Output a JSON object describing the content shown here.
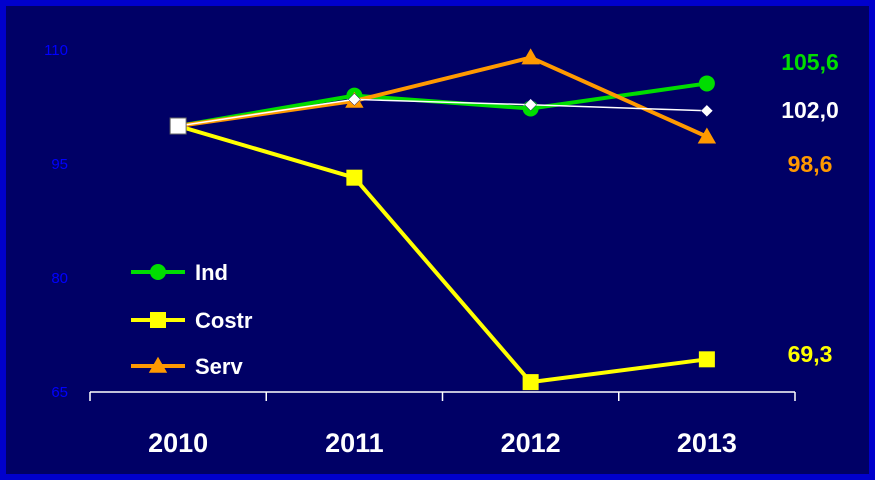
{
  "chart_data": {
    "type": "line",
    "categories": [
      "2010",
      "2011",
      "2012",
      "2013"
    ],
    "ylim": [
      65,
      110
    ],
    "yticks": [
      65,
      80,
      95,
      110
    ],
    "grid": false,
    "legend_position": "bottom-left",
    "series": [
      {
        "name": "Ind",
        "values": [
          100,
          104.0,
          102.3,
          105.6
        ],
        "color": "#00dd00",
        "marker": "circle",
        "end_label": "105,6",
        "show_label": true
      },
      {
        "name": "Costr",
        "values": [
          100,
          93.2,
          66.3,
          69.3
        ],
        "color": "#ffff00",
        "marker": "square",
        "end_label": "69,3",
        "show_label": true
      },
      {
        "name": "Serv",
        "values": [
          100,
          103.3,
          109.0,
          98.6
        ],
        "color": "#ff9900",
        "marker": "triangle",
        "end_label": "98,6",
        "show_label": true
      },
      {
        "name": "",
        "values": [
          100,
          103.5,
          102.8,
          102.0
        ],
        "color": "#ffffff",
        "marker": "diamond",
        "end_label": "102,0",
        "show_label": false
      }
    ]
  }
}
